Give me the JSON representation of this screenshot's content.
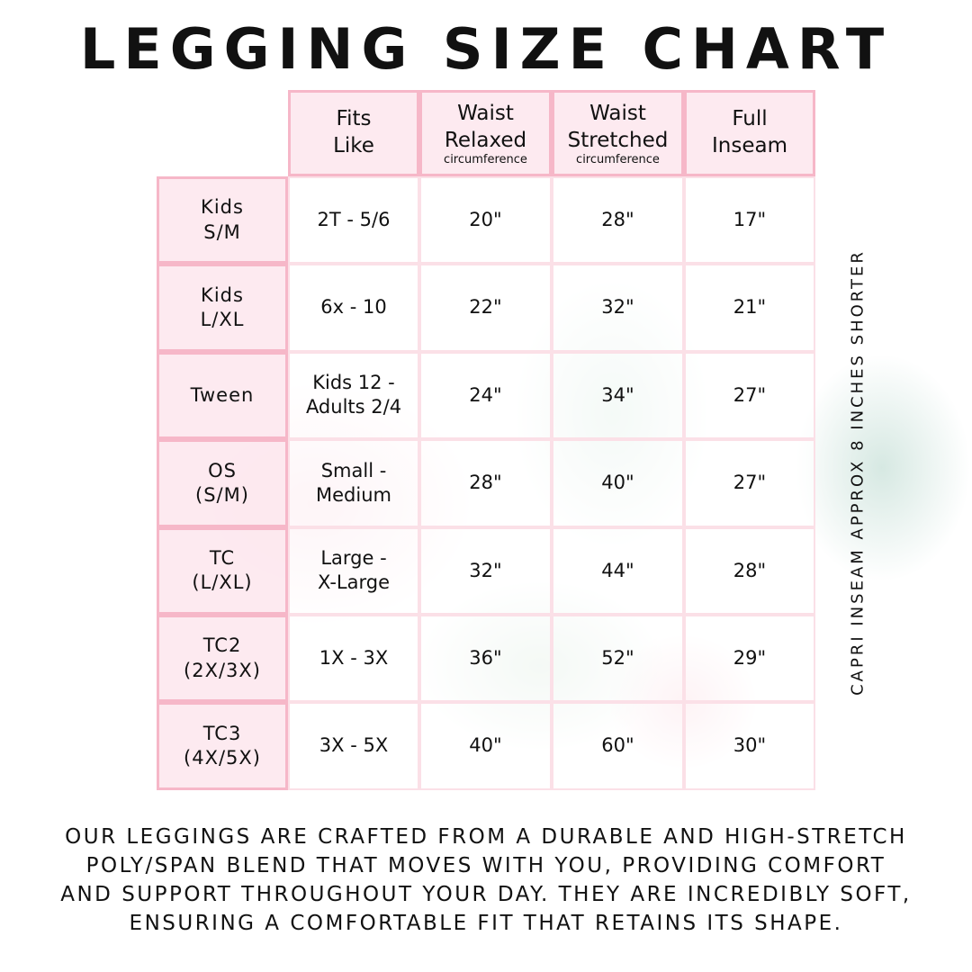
{
  "title": "LEGGING SIZE CHART",
  "headers": [
    {
      "lines": [
        "Fits",
        "Like"
      ],
      "sub": ""
    },
    {
      "lines": [
        "Waist",
        "Relaxed"
      ],
      "sub": "circumference"
    },
    {
      "lines": [
        "Waist",
        "Stretched"
      ],
      "sub": "circumference"
    },
    {
      "lines": [
        "Full",
        "Inseam"
      ],
      "sub": ""
    }
  ],
  "rows": [
    {
      "size": [
        "Kids",
        "S/M"
      ],
      "fits": [
        "2T - 5/6"
      ],
      "relaxed": "20\"",
      "stretched": "28\"",
      "inseam": "17\""
    },
    {
      "size": [
        "Kids",
        "L/XL"
      ],
      "fits": [
        "6x - 10"
      ],
      "relaxed": "22\"",
      "stretched": "32\"",
      "inseam": "21\""
    },
    {
      "size": [
        "Tween"
      ],
      "fits": [
        "Kids 12 -",
        "Adults 2/4"
      ],
      "relaxed": "24\"",
      "stretched": "34\"",
      "inseam": "27\""
    },
    {
      "size": [
        "OS",
        "(S/M)"
      ],
      "fits": [
        "Small -",
        "Medium"
      ],
      "relaxed": "28\"",
      "stretched": "40\"",
      "inseam": "27\""
    },
    {
      "size": [
        "TC",
        "(L/XL)"
      ],
      "fits": [
        "Large -",
        "X-Large"
      ],
      "relaxed": "32\"",
      "stretched": "44\"",
      "inseam": "28\""
    },
    {
      "size": [
        "TC2",
        "(2X/3X)"
      ],
      "fits": [
        "1X - 3X"
      ],
      "relaxed": "36\"",
      "stretched": "52\"",
      "inseam": "29\""
    },
    {
      "size": [
        "TC3",
        "(4X/5X)"
      ],
      "fits": [
        "3X - 5X"
      ],
      "relaxed": "40\"",
      "stretched": "60\"",
      "inseam": "30\""
    }
  ],
  "side_note": "CAPRI INSEAM APPROX 8 INCHES SHORTER",
  "footer": [
    "Our leggings are crafted from a durable and high-stretch",
    "poly/span blend that moves with you, providing comfort",
    "and support throughout your day. They are incredibly soft,",
    "ensuring a comfortable fit that retains its shape."
  ],
  "colors": {
    "border": "#f6b7c8",
    "header_fill": "#fde8ee",
    "text": "#111111"
  }
}
